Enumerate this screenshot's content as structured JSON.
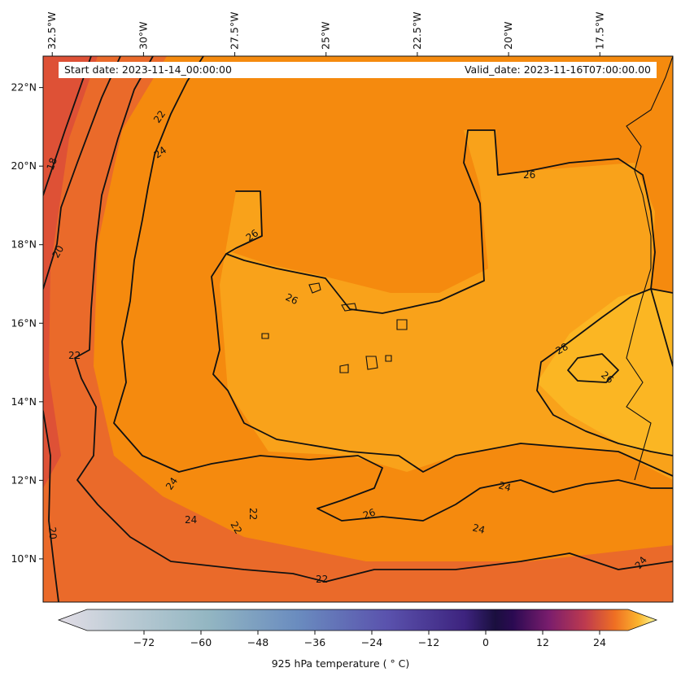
{
  "header": {
    "start_date": "Start date: 2023-11-14_00:00:00",
    "valid_date": "Valid_date: 2023-11-16T07:00:00.00"
  },
  "map": {
    "extent": {
      "lon": [
        -32.75,
        -15.5
      ],
      "lat": [
        8.9,
        22.8
      ]
    },
    "lon_ticks": [
      {
        "value": -32.5,
        "label": "32.5°W"
      },
      {
        "value": -30,
        "label": "30°W"
      },
      {
        "value": -27.5,
        "label": "27.5°W"
      },
      {
        "value": -25,
        "label": "25°W"
      },
      {
        "value": -22.5,
        "label": "22.5°W"
      },
      {
        "value": -20,
        "label": "20°W"
      },
      {
        "value": -17.5,
        "label": "17.5°W"
      }
    ],
    "lat_ticks": [
      {
        "value": 22,
        "label": "22°N"
      },
      {
        "value": 20,
        "label": "20°N"
      },
      {
        "value": 18,
        "label": "18°N"
      },
      {
        "value": 16,
        "label": "16°N"
      },
      {
        "value": 14,
        "label": "14°N"
      },
      {
        "value": 12,
        "label": "12°N"
      },
      {
        "value": 10,
        "label": "10°N"
      }
    ],
    "contour_labels": [
      "18",
      "20",
      "22",
      "24",
      "26",
      "28"
    ],
    "colors": {
      "t16": "#dd4d37",
      "t20": "#e8632c",
      "t24": "#f58a0e",
      "t26": "#f9a21a",
      "t28": "#fbb623"
    }
  },
  "colorbar": {
    "label": "925 hPa temperature ($^\\circ$C)",
    "label_display": "925 hPa temperature ( ° C)",
    "range": [
      -84,
      30
    ],
    "ticks": [
      -72,
      -60,
      -48,
      -36,
      -24,
      -12,
      0,
      12,
      24
    ]
  }
}
